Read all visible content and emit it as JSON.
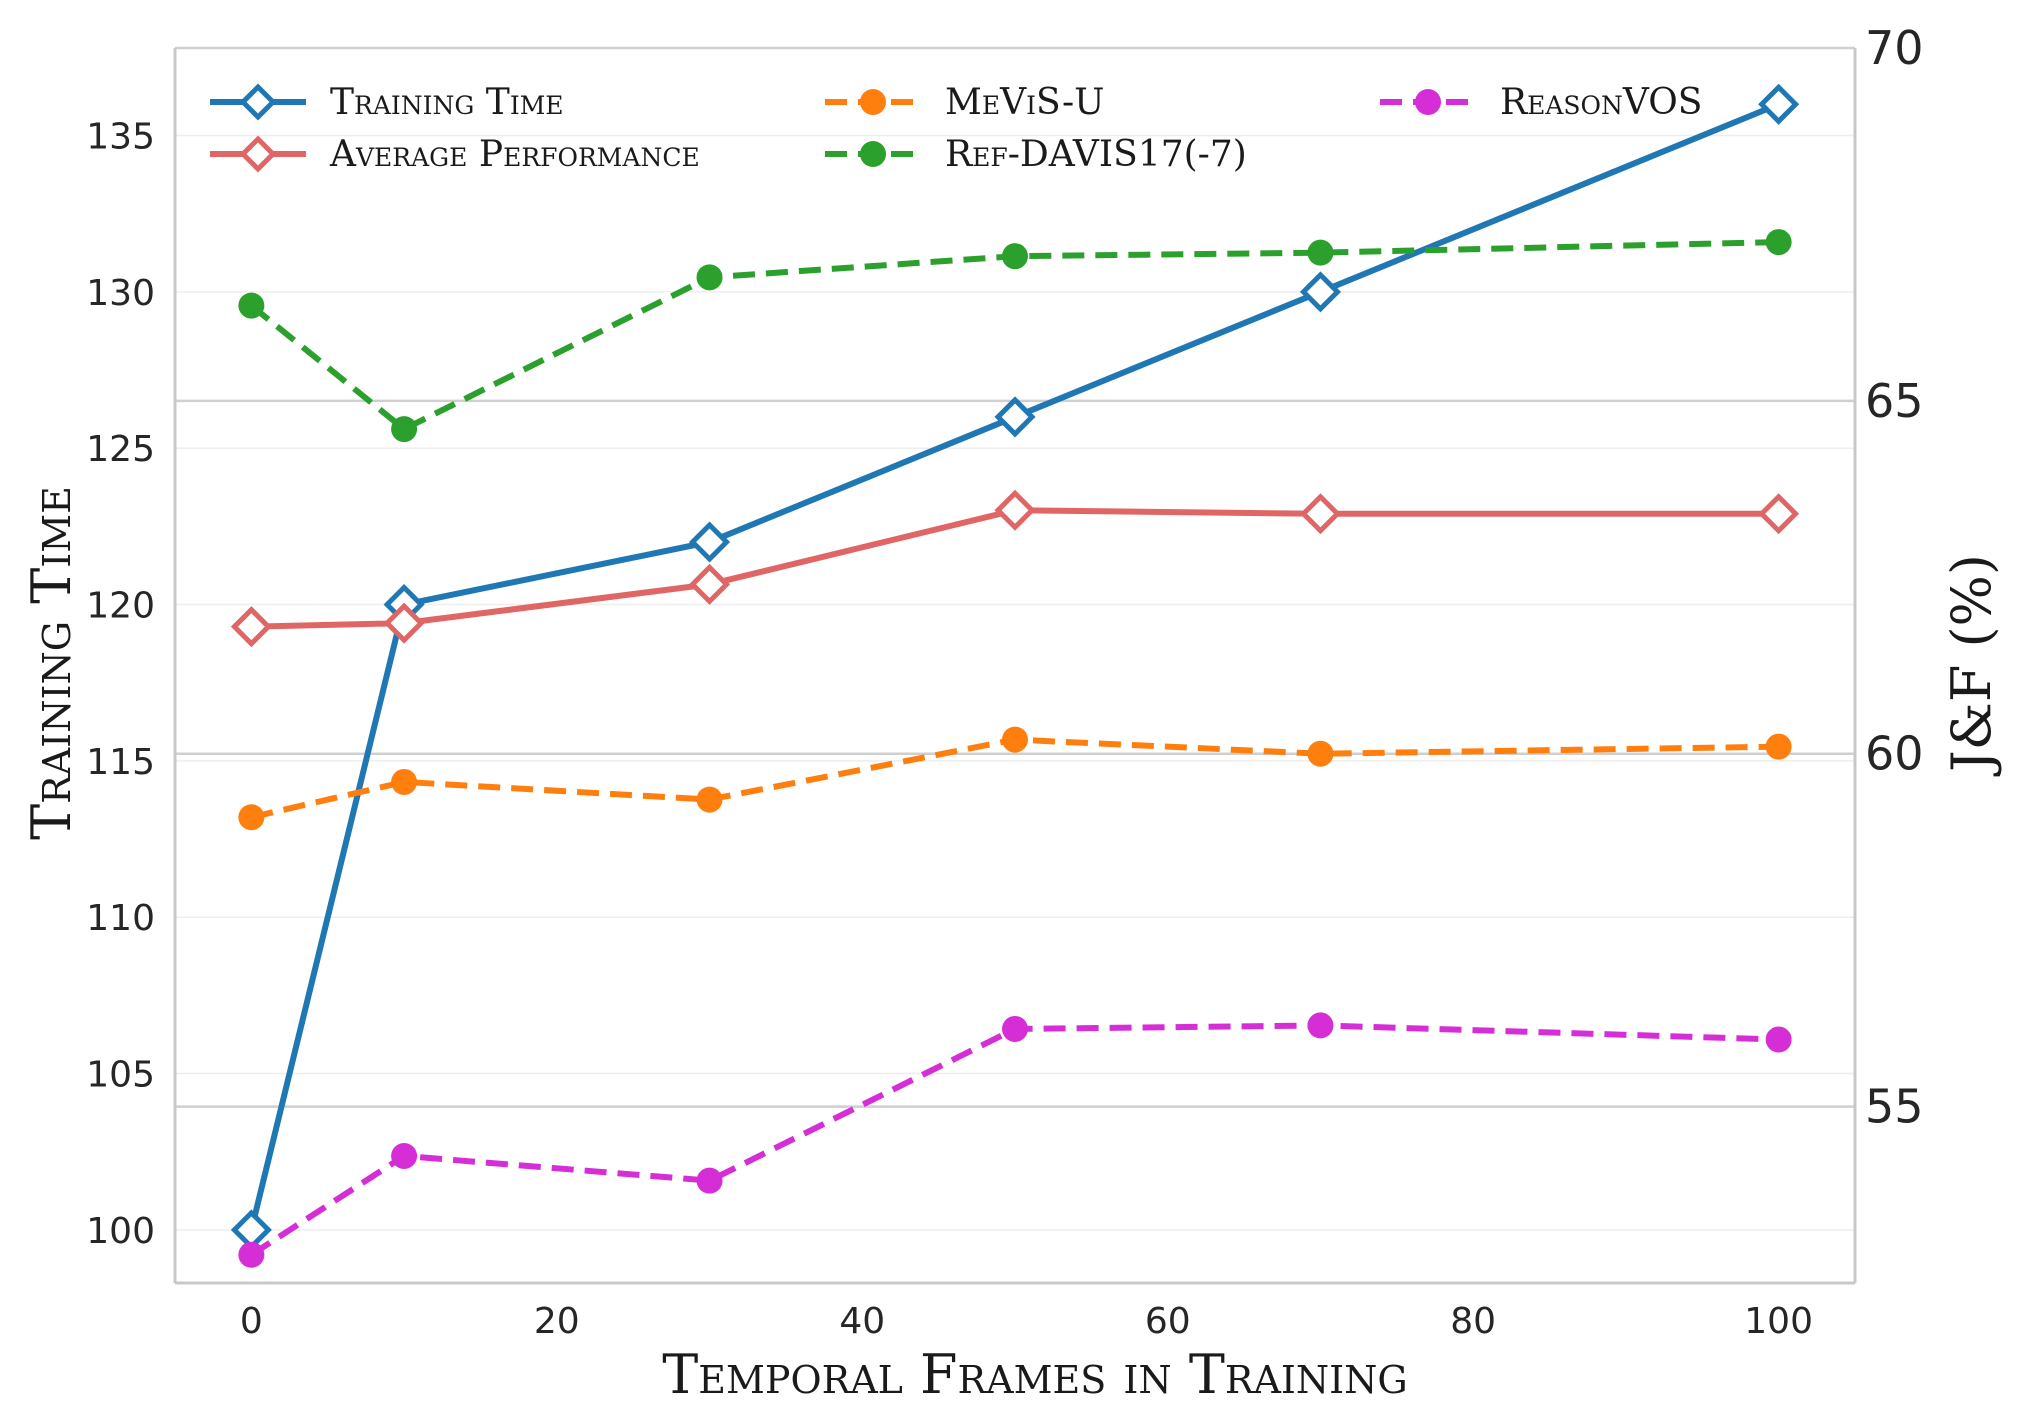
{
  "chart_data": {
    "type": "line",
    "xlabel": "Temporal Frames in Training",
    "ylabel_left": "Training Time",
    "ylabel_right": "J&F (%)",
    "x": [
      0,
      10,
      30,
      50,
      70,
      100
    ],
    "xlim": [
      -5,
      105
    ],
    "xticks": [
      0,
      20,
      40,
      60,
      80,
      100
    ],
    "ylim_left": [
      98.3,
      137.8
    ],
    "yticks_left": [
      100,
      105,
      110,
      115,
      120,
      125,
      130,
      135
    ],
    "ylim_right": [
      52.5,
      70
    ],
    "yticks_right": [
      55,
      60,
      65,
      70
    ],
    "grid": true,
    "legend_position": "top",
    "series": [
      {
        "name": "Training Time",
        "axis": "left",
        "style": "solid",
        "marker": "diamond-open",
        "color": "#1f77b4",
        "values": [
          100,
          120,
          122,
          126,
          130,
          136
        ]
      },
      {
        "name": "Average Performance",
        "axis": "right",
        "style": "solid",
        "marker": "diamond-open",
        "color": "#e06666",
        "values": [
          61.8,
          61.85,
          62.4,
          63.45,
          63.4,
          63.4
        ]
      },
      {
        "name": "MeViS-U",
        "axis": "right",
        "style": "dashed",
        "marker": "circle",
        "color": "#ff7f0e",
        "values": [
          59.1,
          59.6,
          59.35,
          60.2,
          60.0,
          60.1
        ]
      },
      {
        "name": "Ref-DAVIS17(-7)",
        "axis": "right",
        "style": "dashed",
        "marker": "circle",
        "color": "#2ca02c",
        "values": [
          66.35,
          64.6,
          66.75,
          67.05,
          67.1,
          67.25
        ]
      },
      {
        "name": "ReasonVOS",
        "axis": "right",
        "style": "dashed",
        "marker": "circle",
        "color": "#d62ed6",
        "values": [
          52.9,
          54.3,
          53.95,
          56.1,
          56.15,
          55.95
        ]
      }
    ]
  }
}
